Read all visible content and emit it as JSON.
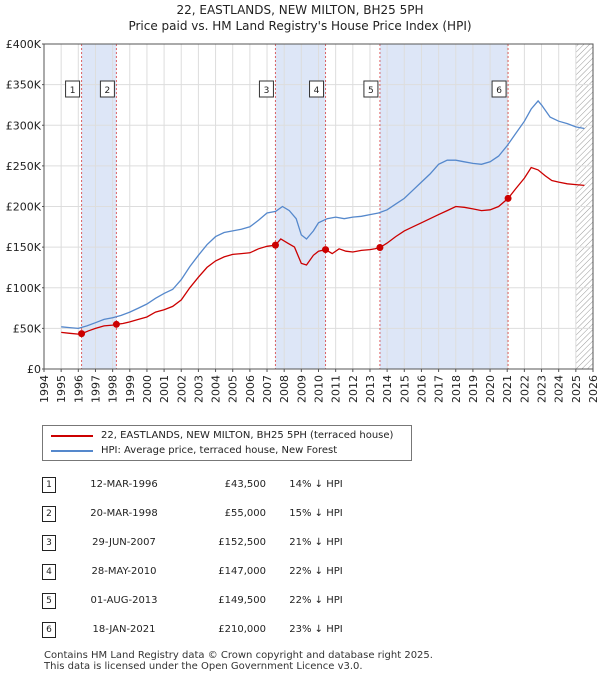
{
  "title_line1": "22, EASTLANDS, NEW MILTON, BH25 5PH",
  "title_line2": "Price paid vs. HM Land Registry's House Price Index (HPI)",
  "colors": {
    "property": "#cc0000",
    "hpi": "#5588cc",
    "shade": "#dde6f7",
    "grid": "#dddddd"
  },
  "legend": {
    "property": "22, EASTLANDS, NEW MILTON, BH25 5PH (terraced house)",
    "hpi": "HPI: Average price, terraced house, New Forest"
  },
  "sales": [
    {
      "num": "1",
      "date": "12-MAR-1996",
      "price": "£43,500",
      "hpi": "14% ↓ HPI"
    },
    {
      "num": "2",
      "date": "20-MAR-1998",
      "price": "£55,000",
      "hpi": "15% ↓ HPI"
    },
    {
      "num": "3",
      "date": "29-JUN-2007",
      "price": "£152,500",
      "hpi": "21% ↓ HPI"
    },
    {
      "num": "4",
      "date": "28-MAY-2010",
      "price": "£147,000",
      "hpi": "22% ↓ HPI"
    },
    {
      "num": "5",
      "date": "01-AUG-2013",
      "price": "£149,500",
      "hpi": "22% ↓ HPI"
    },
    {
      "num": "6",
      "date": "18-JAN-2021",
      "price": "£210,000",
      "hpi": "23% ↓ HPI"
    }
  ],
  "footer_line1": "Contains HM Land Registry data © Crown copyright and database right 2025.",
  "footer_line2": "This data is licensed under the Open Government Licence v3.0.",
  "chart_data": {
    "type": "line",
    "title": "22, EASTLANDS, NEW MILTON, BH25 5PH — Price paid vs. HM Land Registry's House Price Index (HPI)",
    "xlabel": "",
    "ylabel": "",
    "xlim": [
      1994,
      2026
    ],
    "ylim": [
      0,
      400000
    ],
    "x_ticks": [
      "1994",
      "1995",
      "1996",
      "1997",
      "1998",
      "1999",
      "2000",
      "2001",
      "2002",
      "2003",
      "2004",
      "2005",
      "2006",
      "2007",
      "2008",
      "2009",
      "2010",
      "2011",
      "2012",
      "2013",
      "2014",
      "2015",
      "2016",
      "2017",
      "2018",
      "2019",
      "2020",
      "2021",
      "2022",
      "2023",
      "2024",
      "2025",
      "2026"
    ],
    "y_ticks": [
      {
        "value": 0,
        "label": "£0"
      },
      {
        "value": 50000,
        "label": "£50K"
      },
      {
        "value": 100000,
        "label": "£100K"
      },
      {
        "value": 150000,
        "label": "£150K"
      },
      {
        "value": 200000,
        "label": "£200K"
      },
      {
        "value": 250000,
        "label": "£250K"
      },
      {
        "value": 300000,
        "label": "£300K"
      },
      {
        "value": 350000,
        "label": "£350K"
      },
      {
        "value": 400000,
        "label": "£400K"
      }
    ],
    "grid": true,
    "legend_position": "below",
    "shaded_ranges": [
      [
        1996.19,
        1998.22
      ],
      [
        2007.49,
        2010.41
      ],
      [
        2013.58,
        2021.05
      ]
    ],
    "hatched_range": [
      2025.0,
      2026.0
    ],
    "series": [
      {
        "name": "22, EASTLANDS, NEW MILTON, BH25 5PH (terraced house)",
        "x": [
          1995.0,
          1995.5,
          1996.0,
          1996.19,
          1996.6,
          1997.0,
          1997.5,
          1998.0,
          1998.22,
          1998.6,
          1999.0,
          1999.5,
          2000.0,
          2000.5,
          2001.0,
          2001.5,
          2002.0,
          2002.5,
          2003.0,
          2003.5,
          2004.0,
          2004.5,
          2005.0,
          2005.5,
          2006.0,
          2006.5,
          2007.0,
          2007.49,
          2007.8,
          2008.2,
          2008.6,
          2009.0,
          2009.3,
          2009.7,
          2010.0,
          2010.41,
          2010.8,
          2011.2,
          2011.6,
          2012.0,
          2012.5,
          2013.0,
          2013.3,
          2013.58,
          2014.0,
          2014.5,
          2015.0,
          2015.5,
          2016.0,
          2016.5,
          2017.0,
          2017.5,
          2018.0,
          2018.5,
          2019.0,
          2019.5,
          2020.0,
          2020.5,
          2021.05,
          2021.5,
          2022.0,
          2022.4,
          2022.8,
          2023.2,
          2023.6,
          2024.0,
          2024.5,
          2025.0,
          2025.5
        ],
        "values": [
          45000,
          44000,
          43000,
          43500,
          47000,
          50000,
          53000,
          54000,
          55000,
          56000,
          58000,
          61000,
          64000,
          70000,
          73000,
          77000,
          85000,
          100000,
          113000,
          125000,
          133000,
          138000,
          141000,
          142000,
          143000,
          148000,
          151000,
          152500,
          160000,
          155000,
          150000,
          130000,
          128000,
          140000,
          145000,
          147000,
          142000,
          148000,
          145000,
          144000,
          146000,
          147000,
          148000,
          149500,
          155000,
          163000,
          170000,
          175000,
          180000,
          185000,
          190000,
          195000,
          200000,
          199000,
          197000,
          195000,
          196000,
          200000,
          210000,
          222000,
          235000,
          248000,
          245000,
          238000,
          232000,
          230000,
          228000,
          227000,
          226000
        ]
      },
      {
        "name": "HPI: Average price, terraced house, New Forest",
        "x": [
          1995.0,
          1995.5,
          1996.0,
          1996.5,
          1997.0,
          1997.5,
          1998.0,
          1998.5,
          1999.0,
          1999.5,
          2000.0,
          2000.5,
          2001.0,
          2001.5,
          2002.0,
          2002.5,
          2003.0,
          2003.5,
          2004.0,
          2004.5,
          2005.0,
          2005.5,
          2006.0,
          2006.5,
          2007.0,
          2007.5,
          2007.9,
          2008.3,
          2008.7,
          2009.0,
          2009.3,
          2009.7,
          2010.0,
          2010.5,
          2011.0,
          2011.5,
          2012.0,
          2012.5,
          2013.0,
          2013.5,
          2014.0,
          2014.5,
          2015.0,
          2015.5,
          2016.0,
          2016.5,
          2017.0,
          2017.5,
          2018.0,
          2018.5,
          2019.0,
          2019.5,
          2020.0,
          2020.5,
          2021.0,
          2021.5,
          2022.0,
          2022.4,
          2022.8,
          2023.0,
          2023.5,
          2024.0,
          2024.5,
          2025.0,
          2025.5
        ],
        "values": [
          52000,
          51000,
          50000,
          53000,
          57000,
          61000,
          63000,
          66000,
          70000,
          75000,
          80000,
          87000,
          93000,
          98000,
          110000,
          126000,
          140000,
          153000,
          163000,
          168000,
          170000,
          172000,
          175000,
          183000,
          192000,
          194000,
          200000,
          195000,
          185000,
          165000,
          160000,
          170000,
          180000,
          185000,
          187000,
          185000,
          187000,
          188000,
          190000,
          192000,
          196000,
          203000,
          210000,
          220000,
          230000,
          240000,
          252000,
          257000,
          257000,
          255000,
          253000,
          252000,
          255000,
          262000,
          275000,
          290000,
          305000,
          320000,
          330000,
          325000,
          310000,
          305000,
          302000,
          298000,
          296000
        ]
      }
    ],
    "annotations": [
      {
        "label": "1",
        "x": 1996.19,
        "value": 43500
      },
      {
        "label": "2",
        "x": 1998.22,
        "value": 55000
      },
      {
        "label": "3",
        "x": 2007.49,
        "value": 152500
      },
      {
        "label": "4",
        "x": 2010.41,
        "value": 147000
      },
      {
        "label": "5",
        "x": 2013.58,
        "value": 149500
      },
      {
        "label": "6",
        "x": 2021.05,
        "value": 210000
      }
    ]
  }
}
